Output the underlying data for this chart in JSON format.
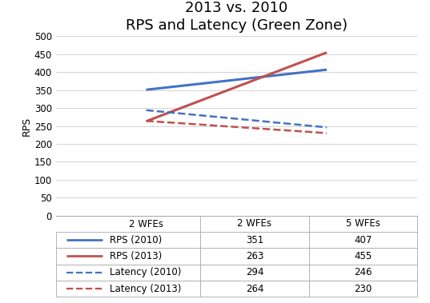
{
  "title_line1": "2013 vs. 2010",
  "title_line2": "RPS and Latency (Green Zone)",
  "x_labels": [
    "2 WFEs",
    "5 WFEs"
  ],
  "x_positions": [
    1,
    2
  ],
  "ylabel": "RPS",
  "ylim": [
    0,
    500
  ],
  "yticks": [
    0,
    50,
    100,
    150,
    200,
    250,
    300,
    350,
    400,
    450,
    500
  ],
  "series": [
    {
      "name": "RPS (2010)",
      "values": [
        351,
        407
      ],
      "color": "#4472C4",
      "linestyle": "solid",
      "linewidth": 2.2
    },
    {
      "name": "RPS (2013)",
      "values": [
        263,
        455
      ],
      "color": "#C0504D",
      "linestyle": "solid",
      "linewidth": 2.2
    },
    {
      "name": "Latency (2010)",
      "values": [
        294,
        246
      ],
      "color": "#4472C4",
      "linestyle": "dashed",
      "linewidth": 1.8
    },
    {
      "name": "Latency (2013)",
      "values": [
        264,
        230
      ],
      "color": "#C0504D",
      "linestyle": "dashed",
      "linewidth": 1.8
    }
  ],
  "table_data": [
    [
      "RPS (2010)",
      "351",
      "407"
    ],
    [
      "RPS (2013)",
      "263",
      "455"
    ],
    [
      "Latency (2010)",
      "294",
      "246"
    ],
    [
      "Latency (2013)",
      "264",
      "230"
    ]
  ],
  "col_headers": [
    "2 WFEs",
    "5 WFEs"
  ],
  "bg_color": "#FFFFFF",
  "grid_color": "#D3D3D3",
  "title_fontsize": 13,
  "axis_label_fontsize": 9,
  "tick_fontsize": 8.5,
  "table_fontsize": 8.5,
  "xlim": [
    0.5,
    2.5
  ]
}
